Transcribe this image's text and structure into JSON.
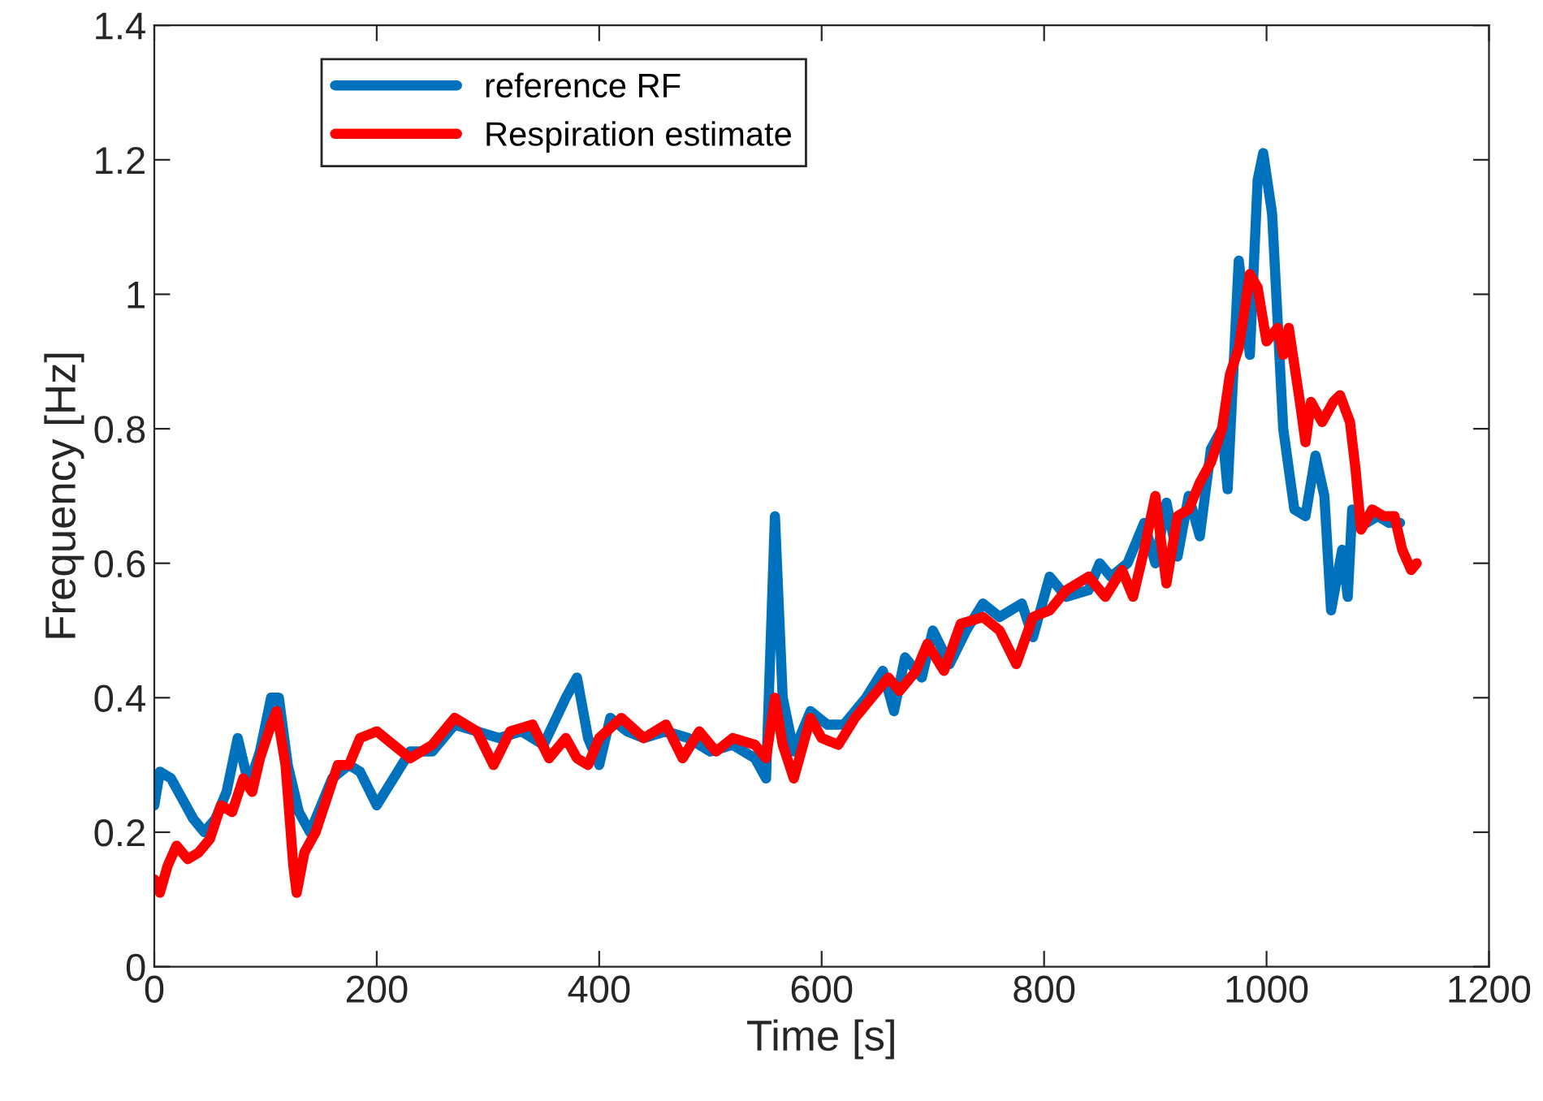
{
  "chart_data": {
    "type": "line",
    "xlabel": "Time [s]",
    "ylabel": "Frequency [Hz]",
    "xlim": [
      0,
      1200
    ],
    "xticks": [
      0,
      200,
      400,
      600,
      800,
      1000,
      1200
    ],
    "ylim": [
      0,
      1.4
    ],
    "yticks": [
      0,
      0.2,
      0.4,
      0.6,
      0.8,
      1,
      1.2,
      1.4
    ],
    "grid": false,
    "legend": "top left",
    "marker": "none",
    "line_style": "solid",
    "series": [
      {
        "name": "reference RF",
        "color": "#0072bd",
        "x": [
          0,
          5,
          15,
          25,
          35,
          45,
          55,
          65,
          75,
          85,
          95,
          105,
          112,
          120,
          130,
          140,
          150,
          160,
          175,
          185,
          200,
          215,
          230,
          250,
          270,
          290,
          310,
          330,
          350,
          370,
          380,
          390,
          400,
          410,
          425,
          440,
          460,
          480,
          500,
          520,
          540,
          550,
          558,
          565,
          575,
          590,
          605,
          620,
          640,
          655,
          665,
          675,
          690,
          700,
          715,
          730,
          745,
          760,
          780,
          790,
          805,
          820,
          840,
          850,
          860,
          875,
          890,
          900,
          910,
          920,
          930,
          940,
          950,
          960,
          965,
          975,
          985,
          992,
          997,
          1005,
          1015,
          1025,
          1035,
          1044,
          1052,
          1058,
          1068,
          1073,
          1077,
          1090,
          1100,
          1110,
          1120
        ],
        "values": [
          0.24,
          0.29,
          0.28,
          0.25,
          0.22,
          0.2,
          0.22,
          0.26,
          0.34,
          0.27,
          0.32,
          0.4,
          0.4,
          0.3,
          0.23,
          0.2,
          0.24,
          0.28,
          0.3,
          0.29,
          0.24,
          0.28,
          0.32,
          0.32,
          0.36,
          0.35,
          0.34,
          0.35,
          0.33,
          0.4,
          0.43,
          0.34,
          0.3,
          0.37,
          0.35,
          0.34,
          0.35,
          0.34,
          0.32,
          0.33,
          0.31,
          0.28,
          0.67,
          0.4,
          0.32,
          0.38,
          0.36,
          0.36,
          0.4,
          0.44,
          0.38,
          0.46,
          0.43,
          0.5,
          0.45,
          0.5,
          0.54,
          0.52,
          0.54,
          0.49,
          0.58,
          0.55,
          0.56,
          0.6,
          0.58,
          0.6,
          0.66,
          0.6,
          0.69,
          0.61,
          0.7,
          0.64,
          0.77,
          0.8,
          0.71,
          1.05,
          0.91,
          1.17,
          1.21,
          1.12,
          0.8,
          0.68,
          0.67,
          0.76,
          0.7,
          0.53,
          0.62,
          0.55,
          0.68,
          0.66,
          0.67,
          0.66,
          0.66
        ]
      },
      {
        "name": "Respiration estimate",
        "color": "#ff0000",
        "x": [
          0,
          5,
          12,
          20,
          30,
          40,
          50,
          60,
          70,
          80,
          88,
          95,
          105,
          110,
          118,
          125,
          128,
          135,
          145,
          155,
          165,
          175,
          185,
          200,
          215,
          230,
          250,
          270,
          290,
          305,
          320,
          340,
          355,
          370,
          380,
          390,
          400,
          420,
          440,
          460,
          475,
          490,
          505,
          520,
          540,
          550,
          558,
          565,
          575,
          590,
          600,
          615,
          630,
          645,
          660,
          670,
          685,
          695,
          710,
          725,
          745,
          760,
          775,
          790,
          805,
          820,
          840,
          855,
          870,
          880,
          890,
          900,
          910,
          920,
          930,
          940,
          950,
          960,
          967,
          975,
          985,
          992,
          1000,
          1010,
          1015,
          1020,
          1030,
          1035,
          1040,
          1050,
          1060,
          1066,
          1075,
          1080,
          1085,
          1095,
          1105,
          1115,
          1122,
          1130,
          1135
        ],
        "values": [
          0.13,
          0.11,
          0.15,
          0.18,
          0.16,
          0.17,
          0.19,
          0.24,
          0.23,
          0.28,
          0.26,
          0.31,
          0.36,
          0.38,
          0.3,
          0.15,
          0.11,
          0.17,
          0.2,
          0.25,
          0.3,
          0.3,
          0.34,
          0.35,
          0.33,
          0.31,
          0.33,
          0.37,
          0.35,
          0.3,
          0.35,
          0.36,
          0.31,
          0.34,
          0.31,
          0.3,
          0.34,
          0.37,
          0.34,
          0.36,
          0.31,
          0.35,
          0.32,
          0.34,
          0.33,
          0.31,
          0.4,
          0.33,
          0.28,
          0.37,
          0.34,
          0.33,
          0.37,
          0.4,
          0.43,
          0.41,
          0.44,
          0.48,
          0.44,
          0.51,
          0.52,
          0.5,
          0.45,
          0.52,
          0.53,
          0.56,
          0.58,
          0.55,
          0.59,
          0.55,
          0.62,
          0.7,
          0.57,
          0.67,
          0.68,
          0.72,
          0.75,
          0.8,
          0.88,
          0.92,
          1.03,
          1.01,
          0.93,
          0.95,
          0.91,
          0.95,
          0.84,
          0.78,
          0.84,
          0.81,
          0.84,
          0.85,
          0.81,
          0.74,
          0.65,
          0.68,
          0.67,
          0.67,
          0.62,
          0.59,
          0.6
        ]
      }
    ]
  }
}
